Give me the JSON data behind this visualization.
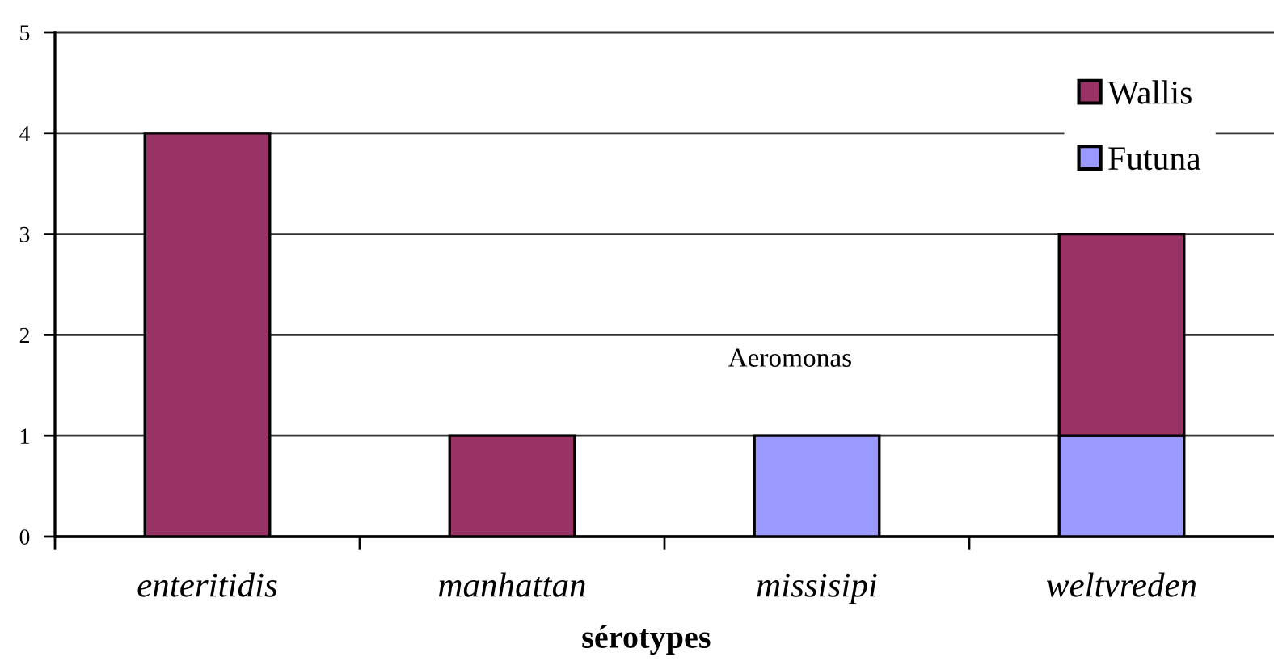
{
  "chart_data": {
    "type": "bar",
    "stacked": true,
    "xlabel": "sérotypes",
    "categories": [
      "enteritidis",
      "manhattan",
      "missisipi",
      "weltvreden"
    ],
    "series": [
      {
        "name": "Futuna",
        "color": "#9999ff",
        "values": [
          null,
          null,
          1,
          1
        ]
      },
      {
        "name": "Wallis",
        "color": "#993366",
        "values": [
          4,
          1,
          null,
          2
        ]
      }
    ],
    "ylim": [
      0,
      5
    ],
    "yticks": [
      0,
      1,
      2,
      3,
      4,
      5
    ],
    "grid": "y",
    "legend": "top right",
    "annotations": [
      "Aeromonas"
    ]
  }
}
